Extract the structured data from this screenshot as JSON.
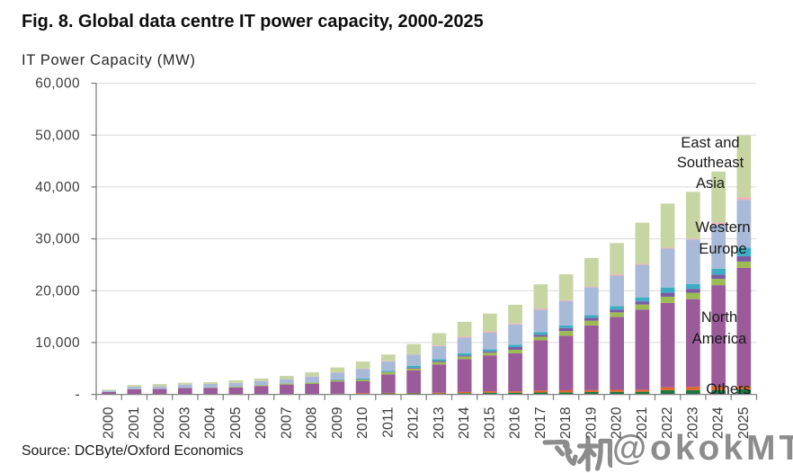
{
  "header": {
    "title": "Fig. 8. Global data centre IT power capacity, 2000-2025"
  },
  "footer": {
    "source": "Source: DCByte/Oxford Economics"
  },
  "watermark": {
    "full_text": "飞机@okokMT",
    "cjk": "飞机",
    "latin": "@okokMT",
    "color": "#8c8c8c"
  },
  "chart_data": {
    "type": "bar",
    "stacked": true,
    "title": "Fig. 8. Global data centre IT power capacity, 2000-2025",
    "ylabel": "IT Power Capacity (MW)",
    "xlabel": "",
    "unit": "MW",
    "ylim": [
      0,
      60000
    ],
    "ytick_values": [
      0,
      10000,
      20000,
      30000,
      40000,
      50000,
      60000
    ],
    "ytick_labels": [
      "-",
      "10,000",
      "20,000",
      "30,000",
      "40,000",
      "50,000",
      "60,000"
    ],
    "grid": "horizontal",
    "legend_position": "direct-labels-on-chart",
    "categories": [
      2000,
      2001,
      2002,
      2003,
      2004,
      2005,
      2006,
      2007,
      2008,
      2009,
      2010,
      2011,
      2012,
      2013,
      2014,
      2015,
      2016,
      2017,
      2018,
      2019,
      2020,
      2021,
      2022,
      2023,
      2024,
      2025
    ],
    "series": [
      {
        "name": "others-navy",
        "label": "Others",
        "color": "#2d3b6e",
        "values": [
          0,
          0,
          0,
          0,
          0,
          0,
          0,
          0,
          0,
          0,
          0,
          0,
          0,
          0,
          0,
          0,
          0,
          0,
          0,
          80,
          80,
          100,
          180,
          180,
          200,
          200
        ]
      },
      {
        "name": "others-dark-green",
        "label": "Others",
        "color": "#1a7a42",
        "values": [
          0,
          0,
          0,
          10,
          10,
          20,
          20,
          50,
          50,
          60,
          100,
          200,
          200,
          170,
          220,
          330,
          330,
          370,
          400,
          380,
          410,
          410,
          640,
          660,
          650,
          790
        ]
      },
      {
        "name": "others-orange",
        "label": "Others",
        "color": "#e2662c",
        "values": [
          0,
          0,
          10,
          10,
          20,
          30,
          30,
          50,
          60,
          70,
          140,
          100,
          80,
          170,
          250,
          280,
          260,
          370,
          400,
          370,
          400,
          400,
          560,
          620,
          700,
          640
        ]
      },
      {
        "name": "north-america",
        "label": "North America",
        "color": "#9b5b9b",
        "values": [
          450,
          1000,
          1040,
          1220,
          1250,
          1270,
          1580,
          1800,
          1900,
          2370,
          2300,
          3560,
          4380,
          5450,
          6340,
          6920,
          7350,
          9680,
          10520,
          12480,
          14030,
          15450,
          16260,
          16910,
          19520,
          22800
        ]
      },
      {
        "name": "others-olive",
        "label": "Others",
        "color": "#9dbb53",
        "values": [
          0,
          20,
          30,
          30,
          40,
          150,
          140,
          220,
          250,
          260,
          300,
          440,
          340,
          450,
          500,
          520,
          670,
          690,
          900,
          900,
          900,
          970,
          1200,
          1230,
          1200,
          1180
        ]
      },
      {
        "name": "others-violet",
        "label": "Others",
        "color": "#7a5ba3",
        "values": [
          0,
          0,
          0,
          0,
          0,
          0,
          0,
          0,
          20,
          30,
          40,
          60,
          140,
          190,
          210,
          260,
          510,
          400,
          580,
          580,
          540,
          610,
          760,
          760,
          830,
          1040
        ]
      },
      {
        "name": "others-teal",
        "label": "Others",
        "color": "#3dadc4",
        "values": [
          0,
          0,
          0,
          10,
          10,
          10,
          20,
          30,
          40,
          100,
          200,
          190,
          390,
          380,
          430,
          400,
          450,
          510,
          510,
          510,
          670,
          780,
          1020,
          950,
          1110,
          1660
        ]
      },
      {
        "name": "western-europe",
        "label": "Western Europe",
        "color": "#a9bad9",
        "values": [
          270,
          450,
          480,
          620,
          680,
          740,
          800,
          790,
          1100,
          1330,
          1850,
          1820,
          2130,
          2500,
          3000,
          3190,
          3930,
          4320,
          4710,
          5390,
          5870,
          6260,
          7490,
          8580,
          8600,
          9220
        ]
      },
      {
        "name": "others-pink",
        "label": "Others",
        "color": "#f0b0b6",
        "values": [
          0,
          0,
          10,
          10,
          10,
          90,
          10,
          20,
          30,
          40,
          60,
          90,
          70,
          140,
          230,
          240,
          190,
          230,
          170,
          140,
          250,
          200,
          190,
          170,
          380,
          450
        ]
      },
      {
        "name": "east-and-southeast-asia",
        "label": "East and Southeast Asia",
        "color": "#c7d5a3",
        "values": [
          180,
          320,
          420,
          340,
          330,
          410,
          470,
          610,
          810,
          940,
          1350,
          1230,
          1980,
          2360,
          2810,
          3450,
          3590,
          4660,
          4970,
          5480,
          6030,
          7940,
          8490,
          9010,
          9770,
          11960
        ]
      }
    ],
    "annotations": [
      {
        "id": "east-and-southeast-asia",
        "lines": [
          "East and",
          "Southeast",
          "Asia"
        ]
      },
      {
        "id": "western-europe",
        "lines": [
          "Western",
          "Europe"
        ]
      },
      {
        "id": "north-america",
        "lines": [
          "North",
          "America"
        ]
      },
      {
        "id": "others",
        "lines": [
          "Others"
        ]
      }
    ],
    "colors": {
      "gridline": "#d9d9d9",
      "axis_line": "#808080",
      "tick_label": "#3d3d3d",
      "annotation_text": "#1a1a1a"
    }
  }
}
